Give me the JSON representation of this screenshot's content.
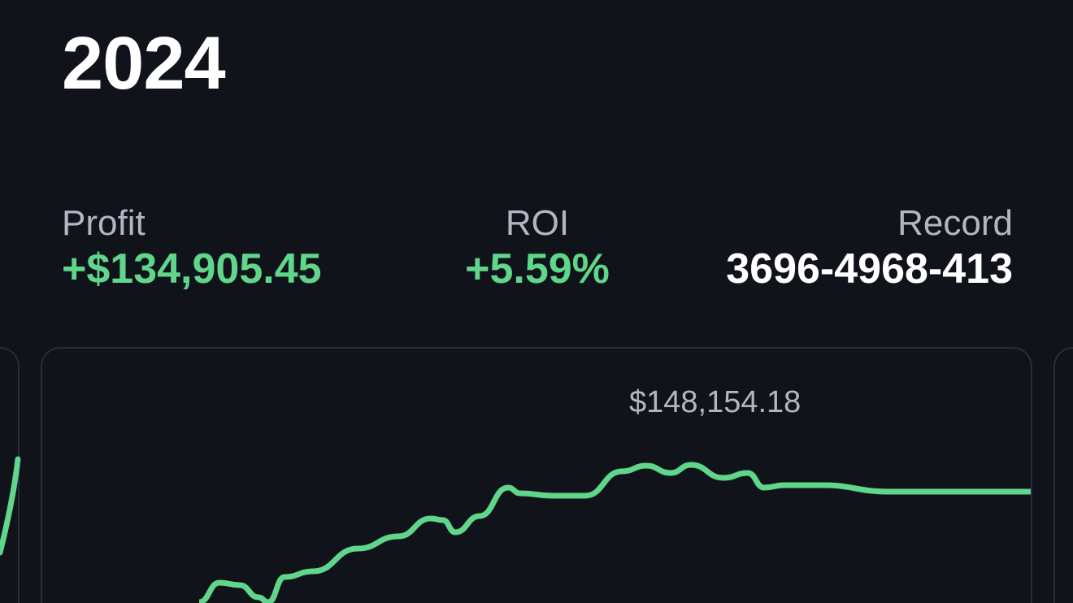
{
  "header": {
    "year": "2024"
  },
  "stats": {
    "profit": {
      "label": "Profit",
      "value": "+$134,905.45"
    },
    "roi": {
      "label": "ROI",
      "value": "+5.59%"
    },
    "record": {
      "label": "Record",
      "value": "3696-4968-413"
    }
  },
  "colors": {
    "background": "#11131b",
    "positive": "#5fd68a",
    "label": "#b3b6c2",
    "card_border": "#262d40"
  },
  "chart_data": {
    "type": "line",
    "peak_label": "$148,154.18",
    "series": [
      {
        "values": [
          79900,
          89937,
          88732,
          82710,
          79900,
          92747,
          95558,
          106800,
          112822,
          121655,
          120852,
          114830,
          122860,
          136913,
          134102,
          132897,
          132897,
          144943,
          147753,
          144140,
          148154,
          141731,
          144140,
          136913,
          138117,
          138117,
          134905,
          134905
        ]
      }
    ],
    "grid": false,
    "axes": false
  }
}
